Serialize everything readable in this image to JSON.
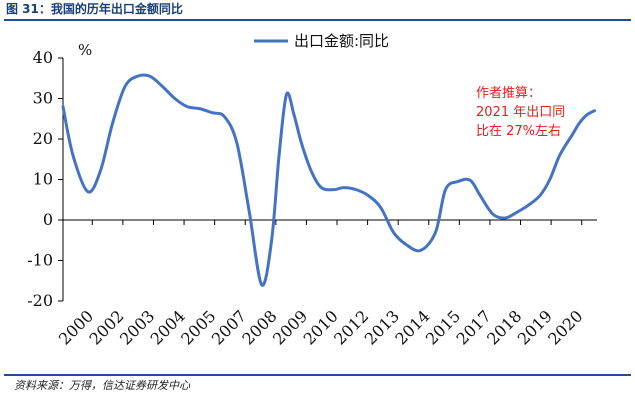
{
  "header": {
    "figure_title": "图 31：我国的历年出口金额同比"
  },
  "footer": {
    "source": "资料来源：万得，信达证券研发中心"
  },
  "colors": {
    "series": "#4472c4",
    "rule": "#1f4e96",
    "annotation": "#e02020"
  },
  "chart_data": {
    "type": "line",
    "title": "",
    "unit_label": "%",
    "xlabel": "",
    "ylabel": "",
    "ylim": [
      -20,
      40
    ],
    "yticks": [
      -20,
      -10,
      0,
      10,
      20,
      30,
      40
    ],
    "xlim": [
      2000,
      2021.5
    ],
    "x_tick_labels": [
      "2000",
      "2002",
      "2003",
      "2004",
      "2005",
      "2007",
      "2008",
      "2009",
      "2010",
      "2012",
      "2013",
      "2014",
      "2015",
      "2017",
      "2018",
      "2019",
      "2020"
    ],
    "grid": false,
    "legend": {
      "position": "top-center",
      "entries": [
        "出口金额:同比"
      ]
    },
    "series": [
      {
        "name": "出口金额:同比",
        "x": [
          2000,
          2000.4,
          2001,
          2001.5,
          2002,
          2002.5,
          2003,
          2003.5,
          2004,
          2004.5,
          2005,
          2005.5,
          2006,
          2006.5,
          2007,
          2007.5,
          2008,
          2008.4,
          2008.7,
          2009,
          2009.3,
          2009.6,
          2010,
          2010.4,
          2010.9,
          2011.3,
          2011.8,
          2012.3,
          2012.8,
          2013.3,
          2013.8,
          2014.4,
          2015,
          2015.4,
          2015.9,
          2016.4,
          2016.8,
          2017.3,
          2017.8,
          2018.3,
          2018.7,
          2019.2,
          2019.6,
          2020,
          2020.5,
          2020.8,
          2021.1,
          2021.4
        ],
        "values": [
          28,
          16,
          7,
          12,
          24,
          33,
          35.5,
          35.5,
          33,
          30,
          28,
          27.5,
          26.5,
          25.5,
          19,
          2,
          -16,
          -5,
          16,
          31,
          26,
          19,
          12,
          8,
          7.5,
          8,
          7.5,
          6,
          3,
          -3,
          -6,
          -7.5,
          -3,
          7.5,
          9.5,
          9.8,
          6,
          1.5,
          0.5,
          2,
          3.5,
          6,
          10,
          16,
          21,
          24,
          26,
          27
        ]
      }
    ],
    "annotation": [
      "作者推算：",
      "2021 年出口同",
      "比在 27%左右"
    ]
  }
}
